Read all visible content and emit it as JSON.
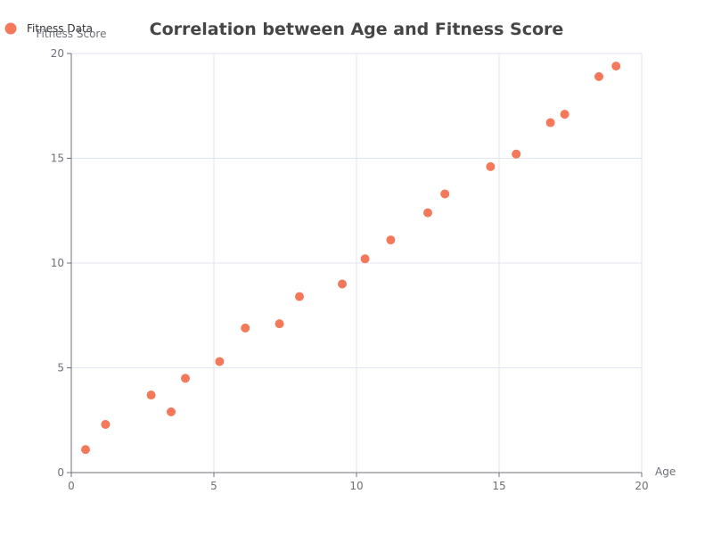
{
  "chart_data": {
    "type": "scatter",
    "title": "Correlation between Age and Fitness Score",
    "xlabel": "Age",
    "ylabel": "Fitness Score",
    "xlim": [
      0,
      20
    ],
    "ylim": [
      0,
      20
    ],
    "x_ticks": [
      0,
      5,
      10,
      15,
      20
    ],
    "y_ticks": [
      0,
      5,
      10,
      15,
      20
    ],
    "grid": true,
    "legend_position": "top-left",
    "series": [
      {
        "name": "Fitness Data",
        "color": "#f4795a",
        "points": [
          [
            0.5,
            1.1
          ],
          [
            1.2,
            2.3
          ],
          [
            2.8,
            3.7
          ],
          [
            3.5,
            2.9
          ],
          [
            4.0,
            4.5
          ],
          [
            5.2,
            5.3
          ],
          [
            6.1,
            6.9
          ],
          [
            7.3,
            7.1
          ],
          [
            8.0,
            8.4
          ],
          [
            9.5,
            9.0
          ],
          [
            10.3,
            10.2
          ],
          [
            11.2,
            11.1
          ],
          [
            12.5,
            12.4
          ],
          [
            13.1,
            13.3
          ],
          [
            14.7,
            14.6
          ],
          [
            15.6,
            15.2
          ],
          [
            16.8,
            16.7
          ],
          [
            17.3,
            17.1
          ],
          [
            18.5,
            18.9
          ],
          [
            19.1,
            19.4
          ]
        ]
      }
    ]
  }
}
